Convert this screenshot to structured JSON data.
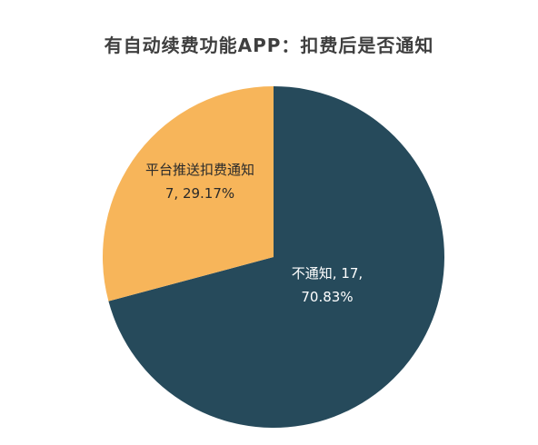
{
  "title": "有自动续费功能APP：扣费后是否通知",
  "chart_data": {
    "type": "pie",
    "title": "有自动续费功能APP：扣费后是否通知",
    "slices": [
      {
        "name": "不通知",
        "value": 17,
        "percent": "70.83%",
        "color": "#264a5b",
        "label_lines": [
          "不通知, 17,",
          "70.83%"
        ],
        "label_color": "#ffffff"
      },
      {
        "name": "平台推送扣费通知",
        "value": 7,
        "percent": "29.17%",
        "color": "#f7b55a",
        "label_lines": [
          "平台推送扣费通知",
          "7, 29.17%"
        ],
        "label_color": "#2a2a2a"
      }
    ],
    "start_angle_deg": 0,
    "direction": "clockwise"
  }
}
